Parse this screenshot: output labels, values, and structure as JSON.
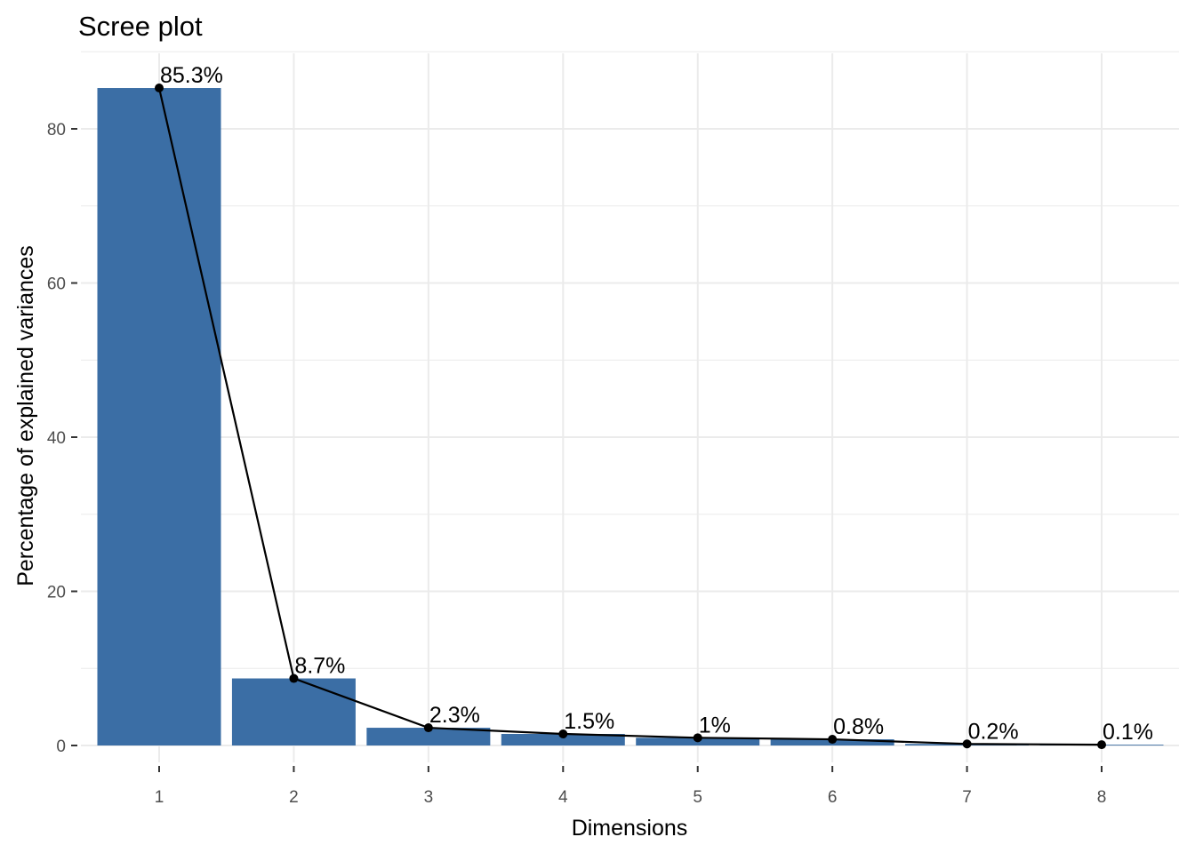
{
  "chart_data": {
    "type": "bar",
    "title": "Scree plot",
    "xlabel": "Dimensions",
    "ylabel": "Percentage of explained variances",
    "categories": [
      "1",
      "2",
      "3",
      "4",
      "5",
      "6",
      "7",
      "8"
    ],
    "values": [
      85.3,
      8.7,
      2.3,
      1.5,
      1.0,
      0.8,
      0.2,
      0.1
    ],
    "data_labels": [
      "85.3%",
      "8.7%",
      "2.3%",
      "1.5%",
      "1%",
      "0.8%",
      "0.2%",
      "0.1%"
    ],
    "overlay": {
      "type": "line",
      "points": true
    },
    "ylim": [
      0,
      90
    ],
    "yticks": [
      0,
      20,
      40,
      60,
      80
    ],
    "grid": true,
    "legend": "none",
    "colors": {
      "bar": "#3b6ea5",
      "line": "#000000",
      "grid": "#ebebeb",
      "tick_text": "#4d4d4d"
    }
  }
}
